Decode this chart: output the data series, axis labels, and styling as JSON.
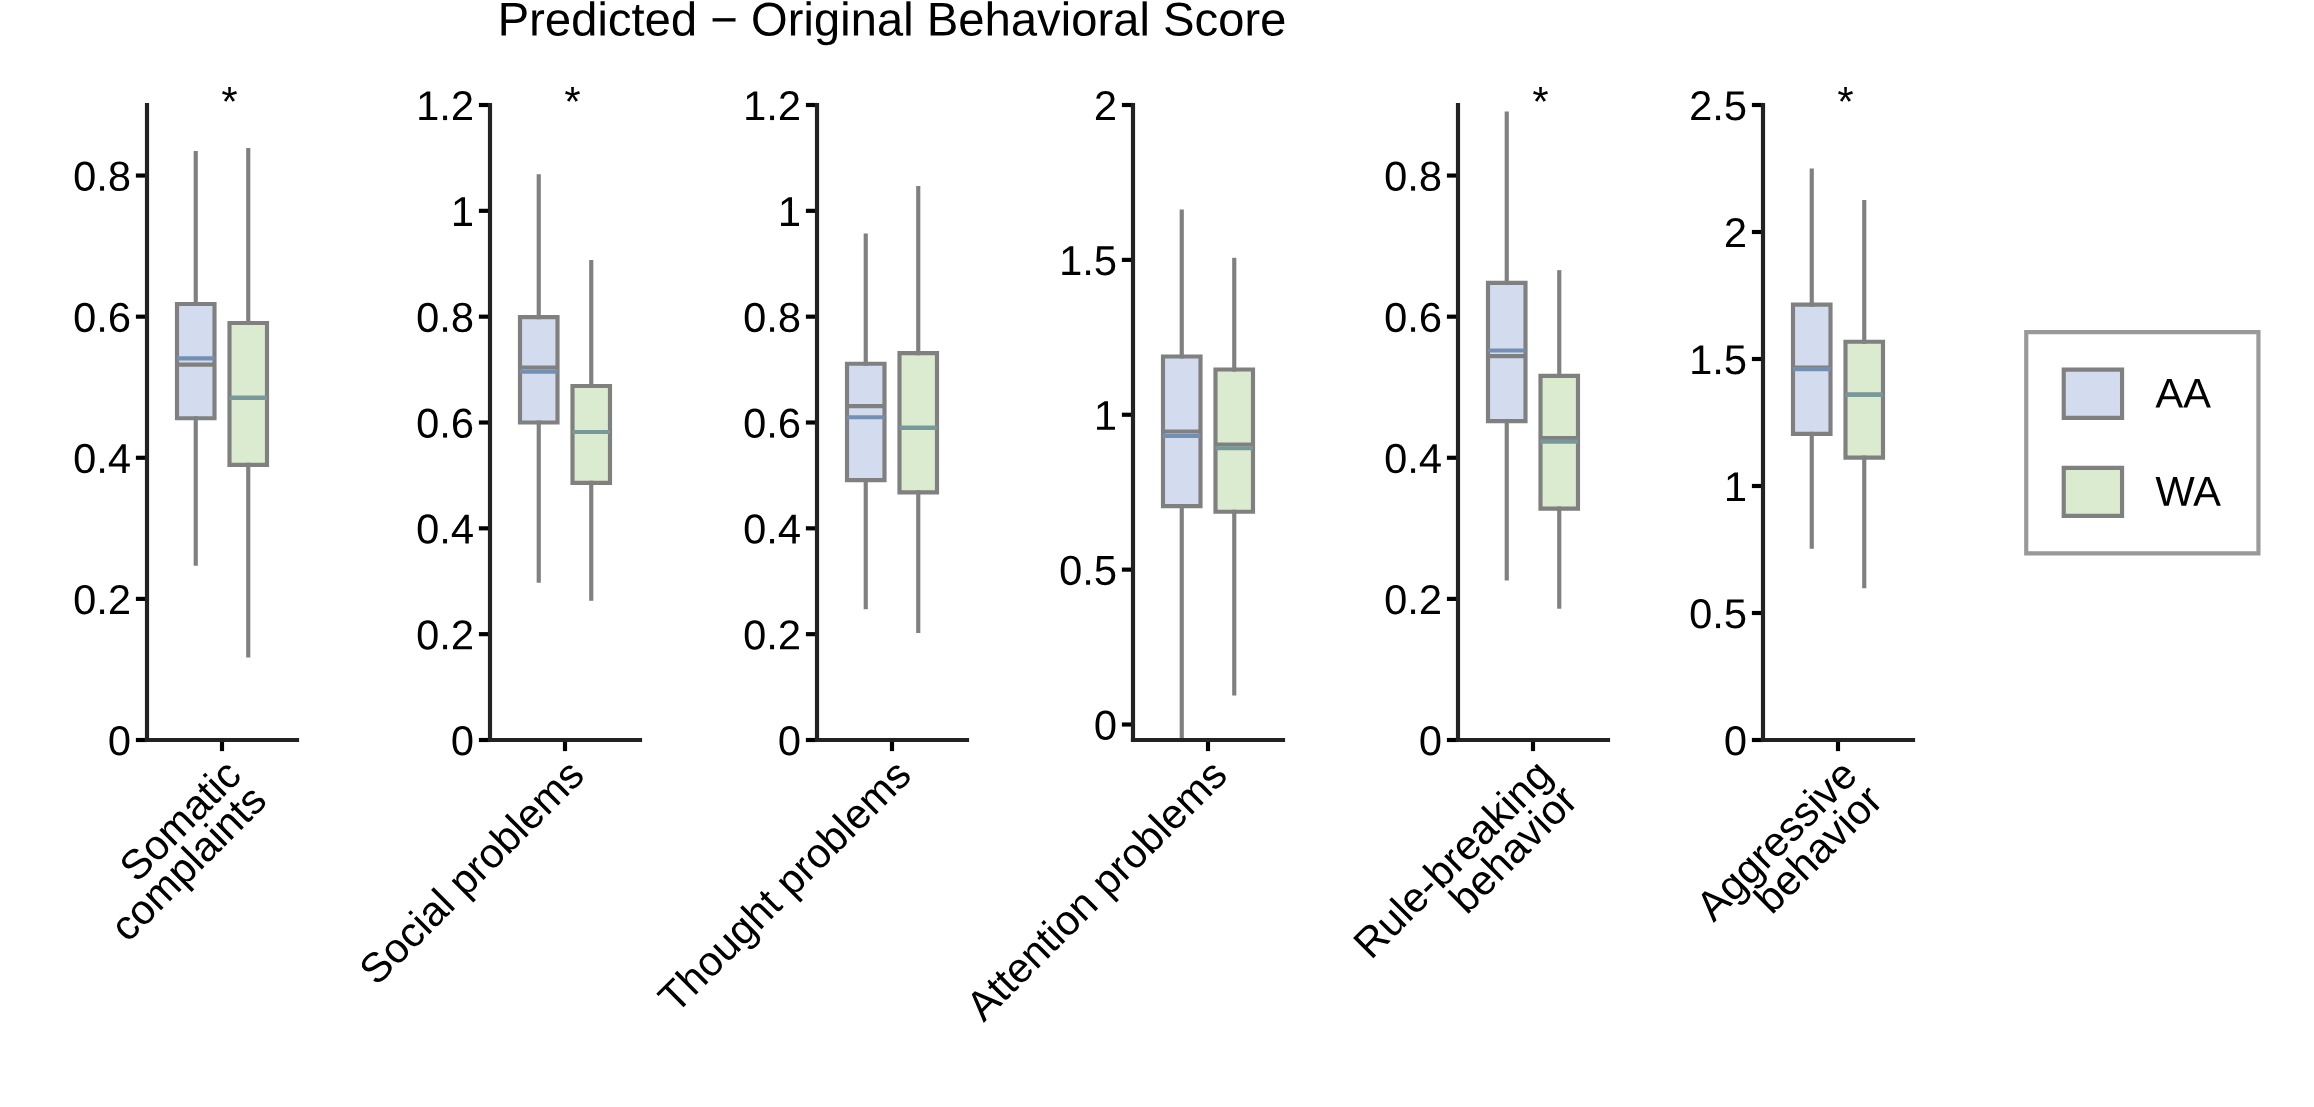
{
  "chart_data": [
    {
      "type": "box",
      "categories": [
        "Somatic\ncomplaints"
      ],
      "ylim": [
        0,
        0.9
      ],
      "yticks": [
        0,
        0.2,
        0.4,
        0.6,
        0.8
      ],
      "annotations": [
        "*"
      ],
      "legend": "right",
      "series": [
        {
          "name": "AA",
          "color": "#d3dcef",
          "boxes": [
            {
              "low": 0.25,
              "q1": 0.456,
              "median": 0.532,
              "q3": 0.618,
              "high": 0.832,
              "mean": 0.541
            }
          ]
        },
        {
          "name": "WA",
          "color": "#dbebcf",
          "boxes": [
            {
              "low": 0.12,
              "q1": 0.39,
              "median": 0.485,
              "q3": 0.591,
              "high": 0.836,
              "mean": 0.485
            }
          ]
        }
      ]
    },
    {
      "type": "box",
      "categories": [
        "Social problems"
      ],
      "ylim": [
        0,
        1.2
      ],
      "yticks": [
        0,
        0.2,
        0.4,
        0.6,
        0.8,
        1,
        1.2
      ],
      "annotations": [
        "*"
      ],
      "series": [
        {
          "color": "#d3dcef",
          "boxes": [
            {
              "low": 0.301,
              "q1": 0.6,
              "median": 0.704,
              "q3": 0.799,
              "high": 1.065,
              "mean": 0.696
            }
          ]
        },
        {
          "color": "#dbebcf",
          "boxes": [
            {
              "low": 0.267,
              "q1": 0.486,
              "median": 0.582,
              "q3": 0.669,
              "high": 0.903,
              "mean": 0.582
            }
          ]
        }
      ]
    },
    {
      "type": "box",
      "title": "Predicted − Original Behavioral Score",
      "categories": [
        "Thought problems"
      ],
      "ylim": [
        0,
        1.2
      ],
      "yticks": [
        0,
        0.2,
        0.4,
        0.6,
        0.8,
        1,
        1.2
      ],
      "series": [
        {
          "color": "#d3dcef",
          "boxes": [
            {
              "low": 0.251,
              "q1": 0.491,
              "median": 0.631,
              "q3": 0.711,
              "high": 0.953,
              "mean": 0.61
            }
          ]
        },
        {
          "color": "#dbebcf",
          "boxes": [
            {
              "low": 0.206,
              "q1": 0.468,
              "median": 0.59,
              "q3": 0.731,
              "high": 1.043,
              "mean": 0.59
            }
          ]
        }
      ]
    },
    {
      "type": "box",
      "categories": [
        "Attention problems"
      ],
      "ylim": [
        -0.05,
        2
      ],
      "yticks": [
        0,
        0.5,
        1,
        1.5,
        2
      ],
      "series": [
        {
          "color": "#d3dcef",
          "boxes": [
            {
              "low": -0.037,
              "q1": 0.705,
              "median": 0.946,
              "q3": 1.188,
              "high": 1.656,
              "mean": 0.932
            }
          ]
        },
        {
          "color": "#dbebcf",
          "boxes": [
            {
              "low": 0.1,
              "q1": 0.687,
              "median": 0.904,
              "q3": 1.146,
              "high": 1.5,
              "mean": 0.892
            }
          ]
        }
      ]
    },
    {
      "type": "box",
      "categories": [
        "Rule-breaking\nbehavior"
      ],
      "ylim": [
        0,
        0.9
      ],
      "yticks": [
        0,
        0.2,
        0.4,
        0.6,
        0.8
      ],
      "annotations": [
        "*"
      ],
      "series": [
        {
          "color": "#d3dcef",
          "boxes": [
            {
              "low": 0.229,
              "q1": 0.452,
              "median": 0.544,
              "q3": 0.648,
              "high": 0.888,
              "mean": 0.552
            }
          ]
        },
        {
          "color": "#dbebcf",
          "boxes": [
            {
              "low": 0.189,
              "q1": 0.328,
              "median": 0.428,
              "q3": 0.516,
              "high": 0.663,
              "mean": 0.423
            }
          ]
        }
      ]
    },
    {
      "type": "box",
      "categories": [
        "Aggressive\nbehavior"
      ],
      "ylim": [
        0,
        2.5
      ],
      "yticks": [
        0,
        0.5,
        1,
        1.5,
        2,
        2.5
      ],
      "annotations": [
        "*"
      ],
      "series": [
        {
          "color": "#d3dcef",
          "boxes": [
            {
              "low": 0.761,
              "q1": 1.205,
              "median": 1.466,
              "q3": 1.714,
              "high": 2.242,
              "mean": 1.46
            }
          ]
        },
        {
          "color": "#dbebcf",
          "boxes": [
            {
              "low": 0.606,
              "q1": 1.112,
              "median": 1.36,
              "q3": 1.568,
              "high": 2.118,
              "mean": 1.36
            }
          ]
        }
      ]
    }
  ]
}
